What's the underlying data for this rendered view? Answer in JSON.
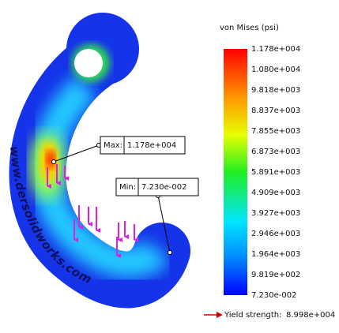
{
  "legend": {
    "title": "von Mises (psi)",
    "labels": [
      "1.178e+004",
      "1.080e+004",
      "9.818e+003",
      "8.837e+003",
      "7.855e+003",
      "6.873e+003",
      "5.891e+003",
      "4.909e+003",
      "3.927e+003",
      "2.946e+003",
      "1.964e+003",
      "9.819e+002",
      "7.230e-002"
    ]
  },
  "max": {
    "label": "Max:",
    "value": "1.178e+004"
  },
  "min": {
    "label": "Min:",
    "value": "7.230e-002"
  },
  "yield": {
    "label": "Yield strength:",
    "value": "8.998e+004"
  },
  "watermark": "www.dersolidworks.com"
}
